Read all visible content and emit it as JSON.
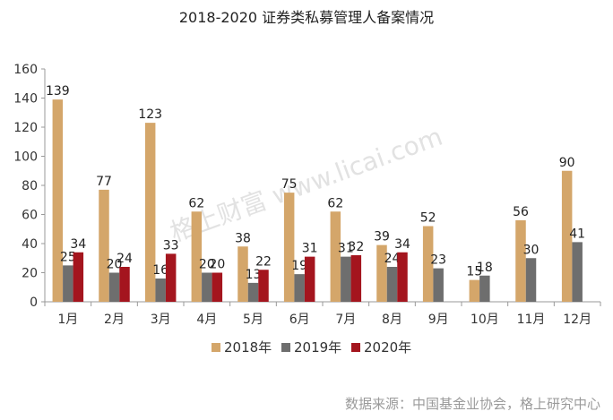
{
  "chart_data": {
    "type": "bar",
    "title": "2018-2020 证券类私募管理人备案情况",
    "xlabel": "",
    "ylabel": "",
    "ylim": [
      0,
      160
    ],
    "yticks": [
      "0",
      "20",
      "40",
      "60",
      "80",
      "100",
      "120",
      "140",
      "160"
    ],
    "grid": false,
    "legend_position": "bottom",
    "categories": [
      "1月",
      "2月",
      "3月",
      "4月",
      "5月",
      "6月",
      "7月",
      "8月",
      "9月",
      "10月",
      "11月",
      "12月"
    ],
    "series": [
      {
        "name": "2018年",
        "color": "#D4A66A",
        "values": [
          139,
          77,
          123,
          62,
          38,
          75,
          62,
          39,
          52,
          15,
          56,
          90
        ]
      },
      {
        "name": "2019年",
        "color": "#6E6E6E",
        "values": [
          25,
          20,
          16,
          20,
          13,
          19,
          31,
          24,
          23,
          18,
          30,
          41
        ]
      },
      {
        "name": "2020年",
        "color": "#A4151E",
        "values": [
          34,
          24,
          33,
          20,
          22,
          31,
          32,
          34,
          null,
          null,
          null,
          null
        ]
      }
    ],
    "watermark": "格上财富  www.licai.com",
    "source": "数据来源：中国基金业协会，格上研究中心"
  }
}
